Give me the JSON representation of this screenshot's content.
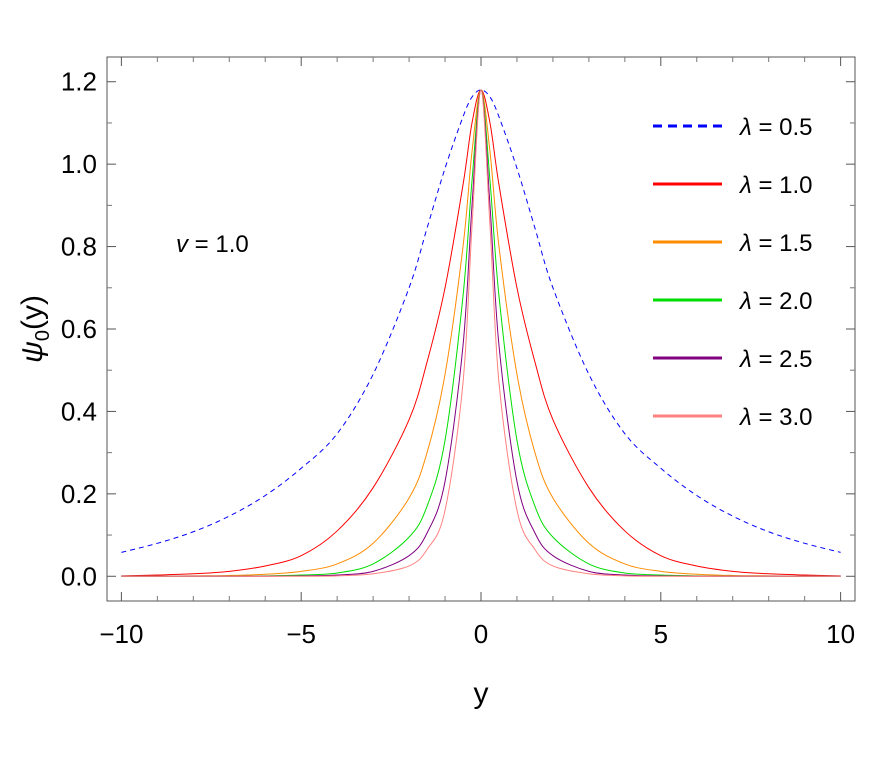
{
  "chart_data": {
    "type": "line",
    "xlabel": "y",
    "ylabel_symbol": "ψ",
    "ylabel_sub": "0",
    "ylabel_arg": "(y)",
    "xlim": [
      -10.4,
      10.4
    ],
    "ylim": [
      -0.06,
      1.26
    ],
    "x_ticks": [
      {
        "value": -10,
        "label": "−10"
      },
      {
        "value": -5,
        "label": "−5"
      },
      {
        "value": 0,
        "label": "0"
      },
      {
        "value": 5,
        "label": "5"
      },
      {
        "value": 10,
        "label": "10"
      }
    ],
    "y_ticks": [
      {
        "value": 0.0,
        "label": "0.0"
      },
      {
        "value": 0.2,
        "label": "0.2"
      },
      {
        "value": 0.4,
        "label": "0.4"
      },
      {
        "value": 0.6,
        "label": "0.6"
      },
      {
        "value": 0.8,
        "label": "0.8"
      },
      {
        "value": 1.0,
        "label": "1.0"
      },
      {
        "value": 1.2,
        "label": "1.2"
      }
    ],
    "annotation": {
      "symbol": "v",
      "value": " = 1.0"
    },
    "legend_position": "top-right",
    "x": [
      -10,
      -9,
      -8,
      -7,
      -6,
      -5,
      -4,
      -3,
      -2,
      -1.5,
      -1,
      -0.5,
      -0.25,
      0,
      0.25,
      0.5,
      1,
      1.5,
      2,
      3,
      4,
      5,
      6,
      7,
      8,
      9,
      10
    ],
    "series": [
      {
        "symbol": "λ",
        "value": " = 0.5",
        "color": "#0000ff",
        "dashed": true,
        "values": [
          0.058,
          0.08,
          0.108,
          0.146,
          0.196,
          0.262,
          0.346,
          0.49,
          0.7,
          0.845,
          0.99,
          1.115,
          1.163,
          1.18,
          1.163,
          1.115,
          0.99,
          0.845,
          0.7,
          0.49,
          0.346,
          0.262,
          0.196,
          0.146,
          0.108,
          0.08,
          0.058
        ]
      },
      {
        "symbol": "λ",
        "value": " = 1.0",
        "color": "#ff0000",
        "dashed": false,
        "values": [
          0.001,
          0.003,
          0.006,
          0.012,
          0.025,
          0.05,
          0.11,
          0.215,
          0.38,
          0.52,
          0.7,
          0.95,
          1.1,
          1.18,
          1.1,
          0.95,
          0.7,
          0.52,
          0.38,
          0.215,
          0.11,
          0.05,
          0.025,
          0.012,
          0.006,
          0.003,
          0.001
        ]
      },
      {
        "symbol": "λ",
        "value": " = 1.5",
        "color": "#ff8c00",
        "dashed": false,
        "values": [
          0.0,
          0.0,
          0.001,
          0.002,
          0.005,
          0.012,
          0.03,
          0.08,
          0.19,
          0.3,
          0.49,
          0.8,
          1.03,
          1.18,
          1.03,
          0.8,
          0.49,
          0.3,
          0.19,
          0.08,
          0.03,
          0.012,
          0.005,
          0.002,
          0.001,
          0.0,
          0.0
        ]
      },
      {
        "symbol": "λ",
        "value": " = 2.0",
        "color": "#00dd00",
        "dashed": false,
        "values": [
          0.0,
          0.0,
          0.0,
          0.0,
          0.001,
          0.003,
          0.008,
          0.03,
          0.095,
          0.17,
          0.33,
          0.68,
          0.96,
          1.18,
          0.96,
          0.68,
          0.33,
          0.17,
          0.095,
          0.03,
          0.008,
          0.003,
          0.001,
          0.0,
          0.0,
          0.0,
          0.0
        ]
      },
      {
        "symbol": "λ",
        "value": " = 2.5",
        "color": "#800080",
        "dashed": false,
        "values": [
          0.0,
          0.0,
          0.0,
          0.0,
          0.0,
          0.001,
          0.003,
          0.012,
          0.05,
          0.105,
          0.23,
          0.56,
          0.9,
          1.18,
          0.9,
          0.56,
          0.23,
          0.105,
          0.05,
          0.012,
          0.003,
          0.001,
          0.0,
          0.0,
          0.0,
          0.0,
          0.0
        ]
      },
      {
        "symbol": "λ",
        "value": " = 3.0",
        "color": "#ff8080",
        "dashed": false,
        "values": [
          0.0,
          0.0,
          0.0,
          0.0,
          0.0,
          0.0,
          0.001,
          0.006,
          0.025,
          0.065,
          0.16,
          0.47,
          0.85,
          1.18,
          0.85,
          0.47,
          0.16,
          0.065,
          0.025,
          0.006,
          0.001,
          0.0,
          0.0,
          0.0,
          0.0,
          0.0,
          0.0
        ]
      }
    ]
  }
}
